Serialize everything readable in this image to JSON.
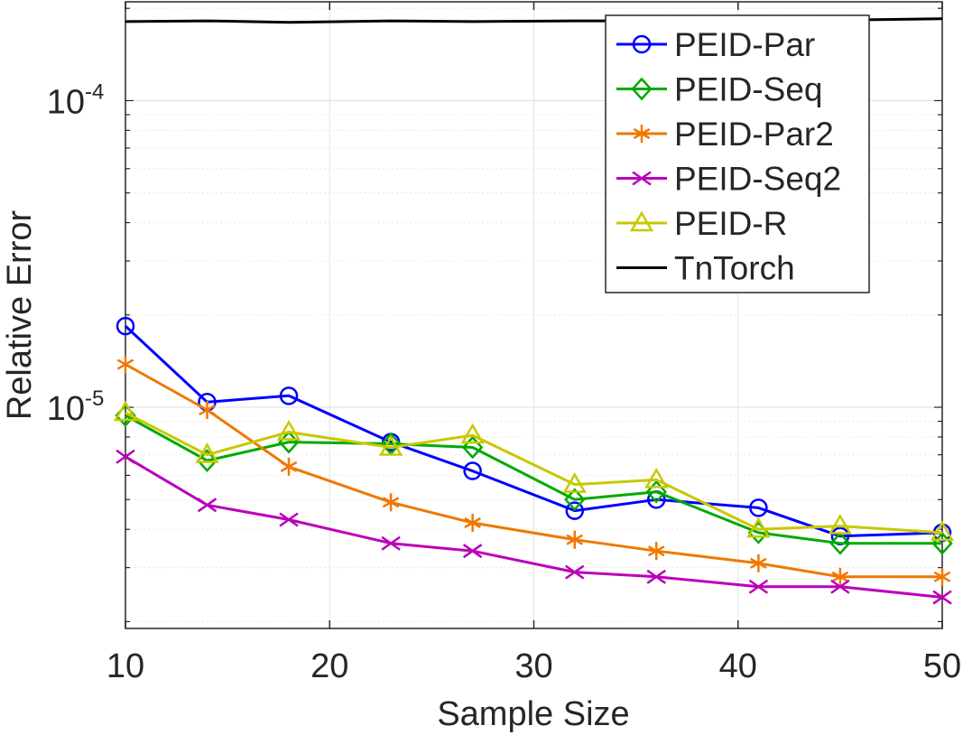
{
  "chart_data": {
    "type": "line",
    "title": "",
    "xlabel": "Sample Size",
    "ylabel": "Relative Error",
    "x_scale": "linear",
    "y_scale": "log",
    "xlim": [
      10,
      50
    ],
    "ylim": [
      1.9e-06,
      0.00021
    ],
    "xticks": [
      10,
      20,
      30,
      40,
      50
    ],
    "xtick_labels": [
      "10",
      "20",
      "30",
      "40",
      "50"
    ],
    "yticks": [
      1e-05,
      0.0001
    ],
    "ytick_labels": [
      {
        "base": "10",
        "exp": "-5"
      },
      {
        "base": "10",
        "exp": "-4"
      }
    ],
    "grid": true,
    "legend_position": "top-right",
    "x": [
      10,
      14,
      18,
      23,
      27,
      32,
      36,
      41,
      45,
      50
    ],
    "series": [
      {
        "name": "PEID-Par",
        "color": "#0000ff",
        "marker": "circle",
        "values": [
          1.84e-05,
          1.04e-05,
          1.09e-05,
          7.7e-06,
          6.2e-06,
          4.6e-06,
          5e-06,
          4.7e-06,
          3.8e-06,
          3.9e-06
        ]
      },
      {
        "name": "PEID-Seq",
        "color": "#00aa00",
        "marker": "diamond",
        "values": [
          9.4e-06,
          6.7e-06,
          7.7e-06,
          7.6e-06,
          7.4e-06,
          5e-06,
          5.3e-06,
          3.9e-06,
          3.6e-06,
          3.6e-06
        ]
      },
      {
        "name": "PEID-Par2",
        "color": "#f07800",
        "marker": "asterisk",
        "values": [
          1.38e-05,
          9.8e-06,
          6.4e-06,
          4.9e-06,
          4.2e-06,
          3.7e-06,
          3.4e-06,
          3.1e-06,
          2.8e-06,
          2.8e-06
        ]
      },
      {
        "name": "PEID-Seq2",
        "color": "#bb00bb",
        "marker": "x",
        "values": [
          6.9e-06,
          4.8e-06,
          4.3e-06,
          3.6e-06,
          3.4e-06,
          2.9e-06,
          2.8e-06,
          2.6e-06,
          2.6e-06,
          2.4e-06
        ]
      },
      {
        "name": "PEID-R",
        "color": "#c8c800",
        "marker": "triangle",
        "values": [
          9.6e-06,
          7e-06,
          8.3e-06,
          7.4e-06,
          8.1e-06,
          5.6e-06,
          5.8e-06,
          4e-06,
          4.1e-06,
          3.9e-06
        ]
      },
      {
        "name": "TnTorch",
        "color": "#000000",
        "marker": "none",
        "values": [
          0.000181,
          0.000182,
          0.00018,
          0.000182,
          0.000181,
          0.000182,
          0.000182,
          0.000183,
          0.000183,
          0.000185
        ]
      }
    ]
  }
}
